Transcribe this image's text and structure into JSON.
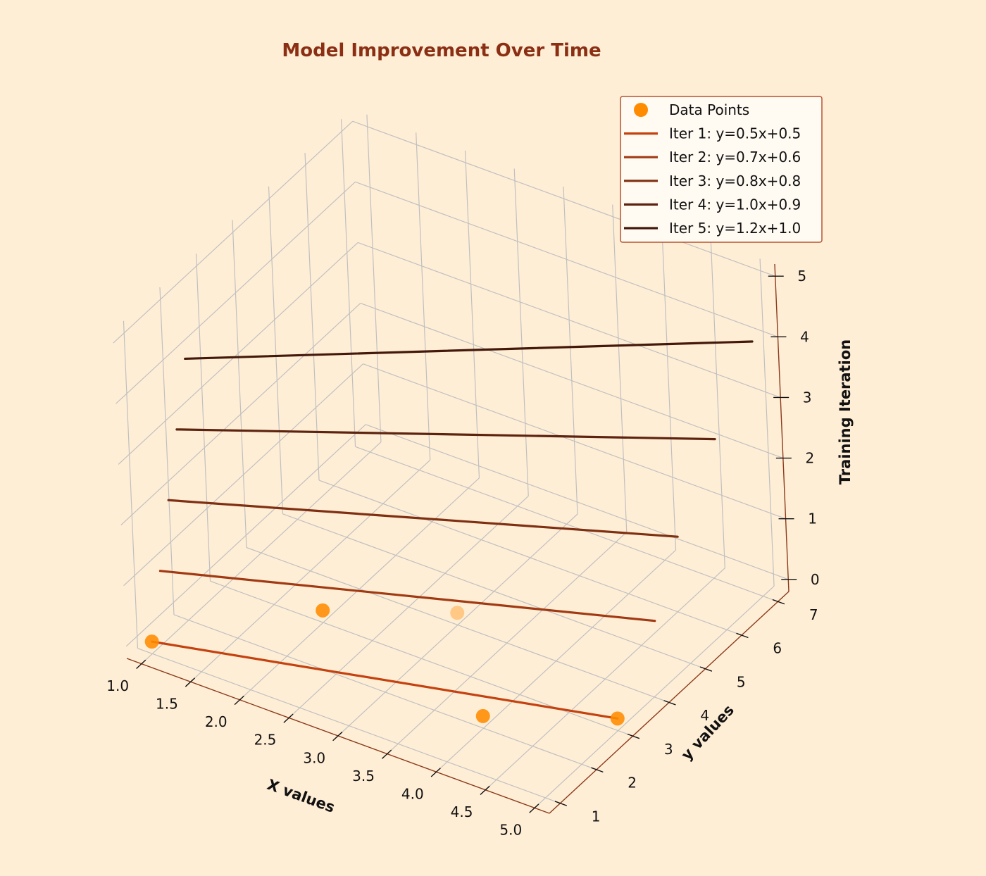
{
  "chart_data": {
    "type": "line",
    "title": "Model Improvement Over Time",
    "xlabel": "X values",
    "ylabel": "y values",
    "zlabel": "Training Iteration",
    "xlim": [
      0.85,
      5.15
    ],
    "ylim": [
      0.7,
      7.3
    ],
    "zlim": [
      -0.2,
      5.2
    ],
    "x_ticks": [
      "1.0",
      "1.5",
      "2.0",
      "2.5",
      "3.0",
      "3.5",
      "4.0",
      "4.5",
      "5.0"
    ],
    "y_ticks": [
      "1",
      "2",
      "3",
      "4",
      "5",
      "6",
      "7"
    ],
    "z_ticks": [
      "0",
      "1",
      "2",
      "3",
      "4",
      "5"
    ],
    "grid": true,
    "legend_position": "top-right",
    "points": {
      "name": "Data Points",
      "color": "#ff8c00",
      "x": [
        1,
        2,
        3,
        4,
        5
      ],
      "y": [
        1,
        3,
        4,
        2,
        3
      ],
      "z": [
        0,
        0,
        0,
        0,
        0
      ]
    },
    "series": [
      {
        "name": "Iter 1: y=0.5x+0.5",
        "slope": 0.5,
        "intercept": 0.5,
        "z": 0,
        "color": "#c4420f"
      },
      {
        "name": "Iter 2: y=0.7x+0.6",
        "slope": 0.7,
        "intercept": 0.6,
        "z": 1,
        "color": "#a13a12"
      },
      {
        "name": "Iter 3: y=0.8x+0.8",
        "slope": 0.8,
        "intercept": 0.8,
        "z": 2,
        "color": "#7f2f12"
      },
      {
        "name": "Iter 4: y=1.0x+0.9",
        "slope": 1.0,
        "intercept": 0.9,
        "z": 3,
        "color": "#5e230f"
      },
      {
        "name": "Iter 5: y=1.2x+1.0",
        "slope": 1.2,
        "intercept": 1.0,
        "z": 4,
        "color": "#44190b"
      }
    ],
    "title_color": "#8b2f14",
    "axis_color": "#8b3a1a",
    "grid_color": "#c0c0c0",
    "legend_edge_color": "#b5532f",
    "legend_face_color": "#fffaf2"
  }
}
